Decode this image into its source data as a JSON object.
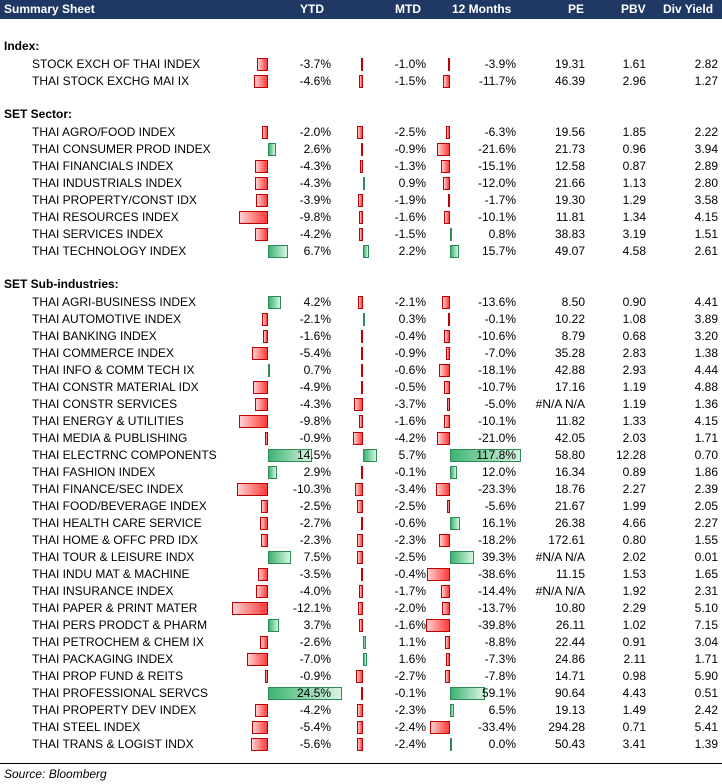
{
  "header": {
    "title": "Summary Sheet",
    "cols": [
      "YTD",
      "MTD",
      "12 Months",
      "PE",
      "PBV",
      "Div Yield"
    ]
  },
  "sections": [
    {
      "title": "Index:",
      "rows": [
        [
          "STOCK EXCH OF THAI INDEX",
          "-3.7%",
          "-1.0%",
          "-3.9%",
          "19.31",
          "1.61",
          "2.82"
        ],
        [
          "THAI STOCK EXCHG MAI IX",
          "-4.6%",
          "-1.5%",
          "-11.7%",
          "46.39",
          "2.96",
          "1.27"
        ]
      ]
    },
    {
      "title": "SET Sector:",
      "rows": [
        [
          "THAI AGRO/FOOD INDEX",
          "-2.0%",
          "-2.5%",
          "-6.3%",
          "19.56",
          "1.85",
          "2.22"
        ],
        [
          "THAI CONSUMER PROD INDEX",
          "2.6%",
          "-0.9%",
          "-21.6%",
          "21.73",
          "0.96",
          "3.94"
        ],
        [
          "THAI FINANCIALS INDEX",
          "-4.3%",
          "-1.3%",
          "-15.1%",
          "12.58",
          "0.87",
          "2.89"
        ],
        [
          "THAI INDUSTRIALS INDEX",
          "-4.3%",
          "0.9%",
          "-12.0%",
          "21.66",
          "1.13",
          "2.80"
        ],
        [
          "THAI PROPERTY/CONST IDX",
          "-3.9%",
          "-1.9%",
          "-1.7%",
          "19.30",
          "1.29",
          "3.58"
        ],
        [
          "THAI RESOURCES INDEX",
          "-9.8%",
          "-1.6%",
          "-10.1%",
          "11.81",
          "1.34",
          "4.15"
        ],
        [
          "THAI SERVICES INDEX",
          "-4.2%",
          "-1.5%",
          "0.8%",
          "38.83",
          "3.19",
          "1.51"
        ],
        [
          "THAI TECHNOLOGY INDEX",
          "6.7%",
          "2.2%",
          "15.7%",
          "49.07",
          "4.58",
          "2.61"
        ]
      ]
    },
    {
      "title": "SET Sub-industries:",
      "rows": [
        [
          "THAI AGRI-BUSINESS INDEX",
          "4.2%",
          "-2.1%",
          "-13.6%",
          "8.50",
          "0.90",
          "4.41"
        ],
        [
          "THAI AUTOMOTIVE INDEX",
          "-2.1%",
          "0.3%",
          "-0.1%",
          "10.22",
          "1.08",
          "3.89"
        ],
        [
          "THAI BANKING INDEX",
          "-1.6%",
          "-0.4%",
          "-10.6%",
          "8.79",
          "0.68",
          "3.20"
        ],
        [
          "THAI COMMERCE INDEX",
          "-5.4%",
          "-0.9%",
          "-7.0%",
          "35.28",
          "2.83",
          "1.38"
        ],
        [
          "THAI INFO & COMM TECH IX",
          "0.7%",
          "-0.6%",
          "-18.1%",
          "42.88",
          "2.93",
          "4.44"
        ],
        [
          "THAI CONSTR MATERIAL IDX",
          "-4.9%",
          "-0.5%",
          "-10.7%",
          "17.16",
          "1.19",
          "4.88"
        ],
        [
          "THAI CONSTR SERVICES",
          "-4.3%",
          "-3.7%",
          "-5.0%",
          "#N/A N/A",
          "1.19",
          "1.36"
        ],
        [
          "THAI ENERGY & UTILITIES",
          "-9.8%",
          "-1.6%",
          "-10.1%",
          "11.82",
          "1.33",
          "4.15"
        ],
        [
          "THAI MEDIA & PUBLISHING",
          "-0.9%",
          "-4.2%",
          "-21.0%",
          "42.05",
          "2.03",
          "1.71"
        ],
        [
          "THAI ELECTRNC COMPONENTS",
          "14.5%",
          "5.7%",
          "117.8%",
          "58.80",
          "12.28",
          "0.70"
        ],
        [
          "THAI FASHION INDEX",
          "2.9%",
          "-0.1%",
          "12.0%",
          "16.34",
          "0.89",
          "1.86"
        ],
        [
          "THAI FINANCE/SEC INDEX",
          "-10.3%",
          "-3.4%",
          "-23.3%",
          "18.76",
          "2.27",
          "2.39"
        ],
        [
          "THAI FOOD/BEVERAGE INDEX",
          "-2.5%",
          "-2.5%",
          "-5.6%",
          "21.67",
          "1.99",
          "2.05"
        ],
        [
          "THAI HEALTH CARE SERVICE",
          "-2.7%",
          "-0.6%",
          "16.1%",
          "26.38",
          "4.66",
          "2.27"
        ],
        [
          "THAI HOME & OFFC PRD IDX",
          "-2.3%",
          "-2.3%",
          "-18.2%",
          "172.61",
          "0.80",
          "1.55"
        ],
        [
          "THAI TOUR & LEISURE INDX",
          "7.5%",
          "-2.5%",
          "39.3%",
          "#N/A N/A",
          "2.02",
          "0.01"
        ],
        [
          "THAI INDU MAT & MACHINE",
          "-3.5%",
          "-0.4%",
          "-38.6%",
          "11.15",
          "1.53",
          "1.65"
        ],
        [
          "THAI INSURANCE INDEX",
          "-4.0%",
          "-1.7%",
          "-14.4%",
          "#N/A N/A",
          "1.92",
          "2.31"
        ],
        [
          "THAI PAPER & PRINT MATER",
          "-12.1%",
          "-2.0%",
          "-13.7%",
          "10.80",
          "2.29",
          "5.10"
        ],
        [
          "THAI PERS PRODCT & PHARM",
          "3.7%",
          "-1.6%",
          "-39.8%",
          "26.11",
          "1.02",
          "7.15"
        ],
        [
          "THAI PETROCHEM & CHEM IX",
          "-2.6%",
          "1.1%",
          "-8.8%",
          "22.44",
          "0.91",
          "3.04"
        ],
        [
          "THAI PACKAGING INDEX",
          "-7.0%",
          "1.6%",
          "-7.3%",
          "24.86",
          "2.11",
          "1.71"
        ],
        [
          "THAI PROP FUND & REITS",
          "-0.9%",
          "-2.7%",
          "-7.8%",
          "14.71",
          "0.98",
          "5.90"
        ],
        [
          "THAI PROFESSIONAL SERVCS",
          "24.5%",
          "-0.1%",
          "59.1%",
          "90.64",
          "4.43",
          "0.51"
        ],
        [
          "THAI PROPERTY DEV INDEX",
          "-4.2%",
          "-2.3%",
          "6.5%",
          "19.13",
          "1.49",
          "2.42"
        ],
        [
          "THAI STEEL INDEX",
          "-5.4%",
          "-2.4%",
          "-33.4%",
          "294.28",
          "0.71",
          "5.41"
        ],
        [
          "THAI TRANS & LOGIST INDX",
          "-5.6%",
          "-2.4%",
          "0.0%",
          "50.43",
          "3.41",
          "1.39"
        ]
      ]
    }
  ],
  "source": "Source: Bloomberg",
  "colors": {
    "header_bg": "#1f3864",
    "neg": "#ff3b3b",
    "pos": "#3cb371"
  }
}
